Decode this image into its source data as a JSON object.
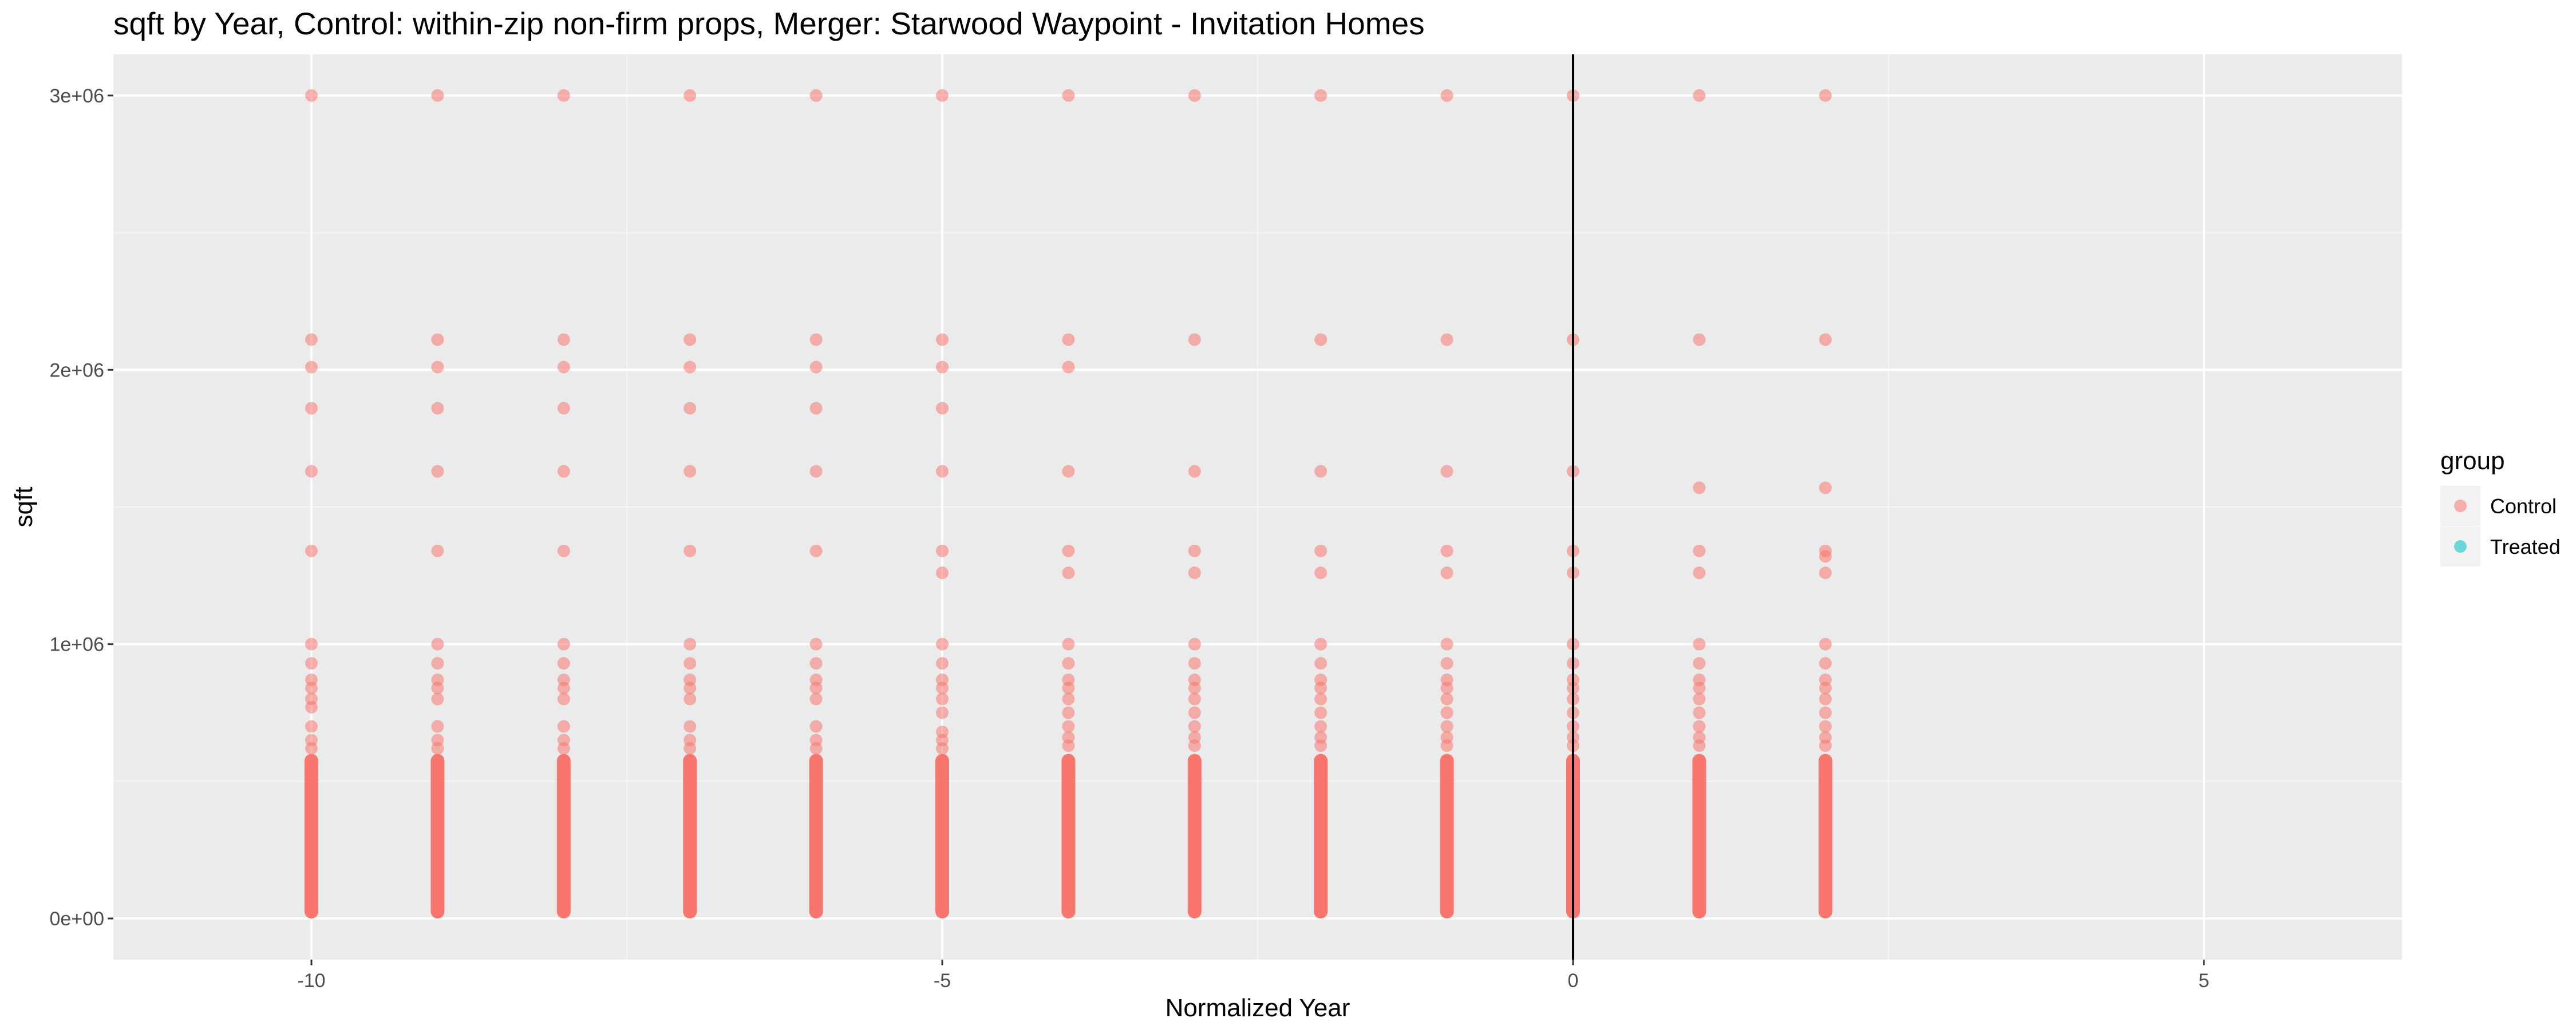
{
  "chart_data": {
    "type": "scatter",
    "title": "sqft by Year, Control: within-zip non-firm props, Merger: Starwood Waypoint - Invitation Homes",
    "xlabel": "Normalized Year",
    "ylabel": "sqft",
    "xlim": [
      -11.57,
      6.57
    ],
    "ylim": [
      -150000,
      3150000
    ],
    "x_ticks": [
      -10,
      -5,
      0,
      5
    ],
    "x_tick_labels": [
      "-10",
      "-5",
      "0",
      "5"
    ],
    "y_ticks": [
      0,
      1000000,
      2000000,
      3000000
    ],
    "y_tick_labels": [
      "0e+00",
      "1e+06",
      "2e+06",
      "3e+06"
    ],
    "vline_x": 0,
    "legend": {
      "title": "group",
      "position": "right",
      "entries": [
        {
          "label": "Control",
          "color": "#F8766D"
        },
        {
          "label": "Treated",
          "color": "#00BFC4"
        }
      ]
    },
    "series": [
      {
        "name": "Control",
        "color": "#F8766D",
        "dense_range": [
          0,
          600000
        ],
        "columns": [
          {
            "x": -10,
            "y": [
              3000000,
              2110000,
              2010000,
              1860000,
              1630000,
              1340000,
              1000000,
              930000,
              870000,
              840000,
              800000,
              770000,
              700000,
              650000,
              620000
            ]
          },
          {
            "x": -9,
            "y": [
              3000000,
              2110000,
              2010000,
              1860000,
              1630000,
              1340000,
              1000000,
              930000,
              870000,
              840000,
              800000,
              700000,
              650000,
              620000
            ]
          },
          {
            "x": -8,
            "y": [
              3000000,
              2110000,
              2010000,
              1860000,
              1630000,
              1340000,
              1000000,
              930000,
              870000,
              840000,
              800000,
              700000,
              650000,
              620000
            ]
          },
          {
            "x": -7,
            "y": [
              3000000,
              2110000,
              2010000,
              1860000,
              1630000,
              1340000,
              1000000,
              930000,
              870000,
              840000,
              800000,
              700000,
              650000,
              620000
            ]
          },
          {
            "x": -6,
            "y": [
              3000000,
              2110000,
              2010000,
              1860000,
              1630000,
              1340000,
              1000000,
              930000,
              870000,
              840000,
              800000,
              700000,
              650000,
              620000
            ]
          },
          {
            "x": -5,
            "y": [
              3000000,
              2110000,
              2010000,
              1860000,
              1630000,
              1340000,
              1260000,
              1000000,
              930000,
              870000,
              840000,
              800000,
              750000,
              680000,
              650000,
              620000
            ]
          },
          {
            "x": -4,
            "y": [
              3000000,
              2110000,
              2010000,
              1630000,
              1340000,
              1260000,
              1000000,
              930000,
              870000,
              840000,
              800000,
              750000,
              700000,
              660000,
              630000
            ]
          },
          {
            "x": -3,
            "y": [
              3000000,
              2110000,
              1630000,
              1340000,
              1260000,
              1000000,
              930000,
              870000,
              840000,
              800000,
              750000,
              700000,
              660000,
              630000
            ]
          },
          {
            "x": -2,
            "y": [
              3000000,
              2110000,
              1630000,
              1340000,
              1260000,
              1000000,
              930000,
              870000,
              840000,
              800000,
              750000,
              700000,
              660000,
              630000
            ]
          },
          {
            "x": -1,
            "y": [
              3000000,
              2110000,
              1630000,
              1340000,
              1260000,
              1000000,
              930000,
              870000,
              840000,
              800000,
              750000,
              700000,
              660000,
              630000
            ]
          },
          {
            "x": 0,
            "y": [
              3000000,
              2110000,
              1630000,
              1340000,
              1260000,
              1000000,
              930000,
              870000,
              840000,
              800000,
              750000,
              700000,
              660000,
              630000
            ]
          },
          {
            "x": 1,
            "y": [
              3000000,
              2110000,
              1570000,
              1340000,
              1260000,
              1000000,
              930000,
              870000,
              840000,
              800000,
              750000,
              700000,
              660000,
              630000
            ]
          },
          {
            "x": 2,
            "y": [
              3000000,
              2110000,
              1570000,
              1340000,
              1320000,
              1260000,
              1000000,
              930000,
              870000,
              840000,
              800000,
              750000,
              700000,
              660000,
              630000
            ]
          }
        ]
      },
      {
        "name": "Treated",
        "color": "#00BFC4",
        "columns": []
      }
    ]
  }
}
